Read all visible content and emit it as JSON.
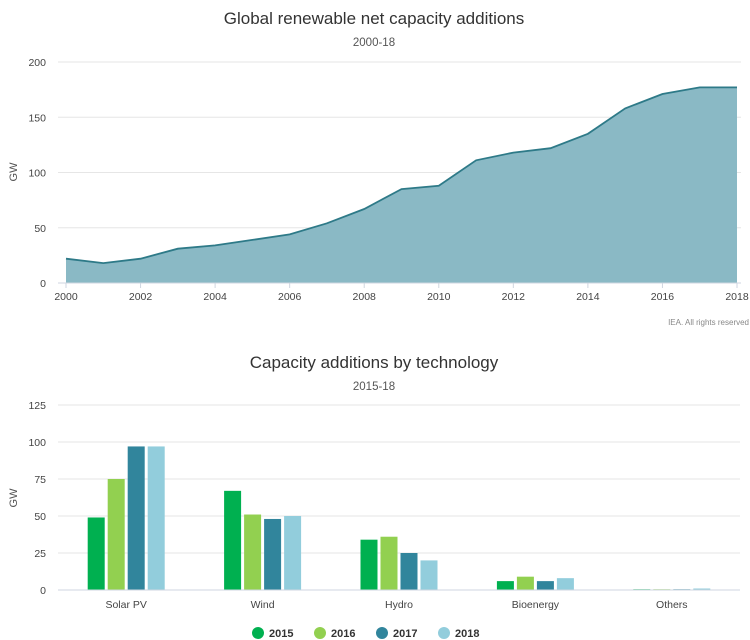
{
  "colors": {
    "area_fill": "#8ab9c5",
    "area_line": "#2e7a88",
    "grid": "#e6e6e6",
    "axis": "#cfd6e0",
    "s2015": "#00b050",
    "s2016": "#92d050",
    "s2017": "#31859c",
    "s2018": "#92cddc"
  },
  "credit": "IEA. All rights reserved",
  "chart_data": [
    {
      "type": "area",
      "title": "Global renewable net capacity additions",
      "subtitle": "2000-18",
      "ylabel": "GW",
      "xlabel": "",
      "ylim": [
        0,
        200
      ],
      "yticks": [
        0,
        50,
        100,
        150,
        200
      ],
      "xticks": [
        2000,
        2002,
        2004,
        2006,
        2008,
        2010,
        2012,
        2014,
        2016,
        2018
      ],
      "x": [
        2000,
        2001,
        2002,
        2003,
        2004,
        2005,
        2006,
        2007,
        2008,
        2009,
        2010,
        2011,
        2012,
        2013,
        2014,
        2015,
        2016,
        2017,
        2018
      ],
      "values": [
        22,
        18,
        22,
        31,
        34,
        39,
        44,
        54,
        67,
        85,
        88,
        111,
        118,
        122,
        135,
        158,
        171,
        177,
        177
      ],
      "grid": true
    },
    {
      "type": "bar",
      "title": "Capacity additions by technology",
      "subtitle": "2015-18",
      "ylabel": "GW",
      "xlabel": "",
      "ylim": [
        0,
        125
      ],
      "yticks": [
        0,
        25,
        50,
        75,
        100,
        125
      ],
      "categories": [
        "Solar PV",
        "Wind",
        "Hydro",
        "Bioenergy",
        "Others"
      ],
      "series": [
        {
          "name": "2015",
          "color_key": "s2015",
          "values": [
            49,
            67,
            34,
            6,
            0.5
          ]
        },
        {
          "name": "2016",
          "color_key": "s2016",
          "values": [
            75,
            51,
            36,
            9,
            0.5
          ]
        },
        {
          "name": "2017",
          "color_key": "s2017",
          "values": [
            97,
            48,
            25,
            6,
            0.5
          ]
        },
        {
          "name": "2018",
          "color_key": "s2018",
          "values": [
            97,
            50,
            20,
            8,
            1
          ]
        }
      ],
      "legend": "bottom-center",
      "grid": true
    }
  ]
}
